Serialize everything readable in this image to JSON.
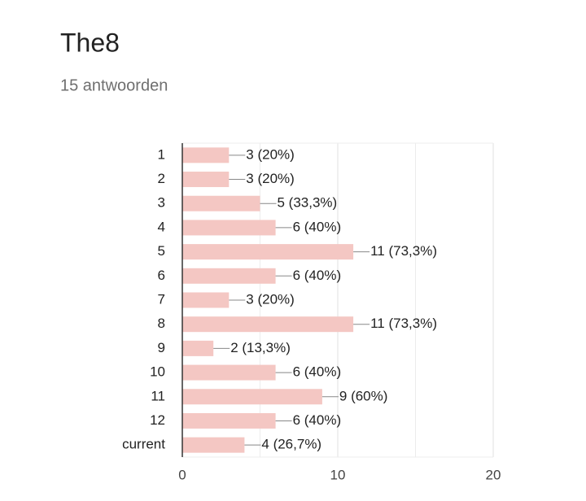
{
  "chart_data": {
    "type": "bar",
    "orientation": "horizontal",
    "title": "The8",
    "subtitle": "15 antwoorden",
    "categories": [
      "1",
      "2",
      "3",
      "4",
      "5",
      "6",
      "7",
      "8",
      "9",
      "10",
      "11",
      "12",
      "current"
    ],
    "values": [
      3,
      3,
      5,
      6,
      11,
      6,
      3,
      11,
      2,
      6,
      9,
      6,
      4
    ],
    "value_labels": [
      "3 (20%)",
      "3 (20%)",
      "5 (33,3%)",
      "6 (40%)",
      "11 (73,3%)",
      "6 (40%)",
      "3 (20%)",
      "11 (73,3%)",
      "2 (13,3%)",
      "6 (40%)",
      "9 (60%)",
      "6 (40%)",
      "4 (26,7%)"
    ],
    "color": "#f4c7c3",
    "xlim": [
      0,
      20
    ],
    "xticks": [
      0,
      10,
      20
    ],
    "minor_xticks": [
      5,
      15
    ],
    "grid": true
  }
}
